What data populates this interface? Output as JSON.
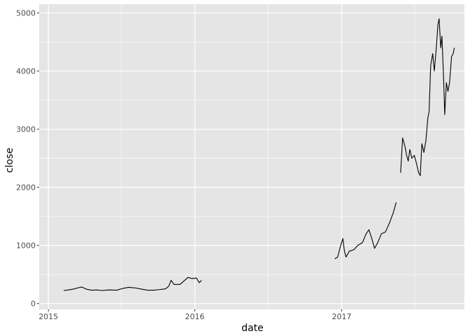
{
  "chart_data": {
    "type": "line",
    "xlabel": "date",
    "ylabel": "close",
    "x_ticks": [
      "2015",
      "2016",
      "2017"
    ],
    "y_ticks": [
      "0",
      "1000",
      "2000",
      "3000",
      "4000",
      "5000"
    ],
    "x_range": [
      "2014-12-09",
      "2017-11-03"
    ],
    "ylim": [
      -100,
      5150
    ],
    "grid": true,
    "legend": "none",
    "colors": {
      "panel": "#e5e5e5",
      "grid": "#ffffff",
      "line": "#000000"
    },
    "series": [
      {
        "values": [
          [
            "2015-02-08",
            225
          ],
          [
            "2015-02-20",
            235
          ],
          [
            "2015-03-05",
            250
          ],
          [
            "2015-03-15",
            270
          ],
          [
            "2015-03-25",
            285
          ],
          [
            "2015-04-05",
            250
          ],
          [
            "2015-04-18",
            230
          ],
          [
            "2015-05-01",
            235
          ],
          [
            "2015-05-15",
            225
          ],
          [
            "2015-06-01",
            235
          ],
          [
            "2015-06-20",
            230
          ],
          [
            "2015-07-05",
            260
          ],
          [
            "2015-07-20",
            280
          ],
          [
            "2015-08-05",
            270
          ],
          [
            "2015-08-20",
            250
          ],
          [
            "2015-09-05",
            230
          ],
          [
            "2015-09-20",
            230
          ],
          [
            "2015-10-05",
            240
          ],
          [
            "2015-10-20",
            255
          ],
          [
            "2015-10-28",
            300
          ],
          [
            "2015-11-03",
            400
          ],
          [
            "2015-11-10",
            330
          ],
          [
            "2015-11-25",
            330
          ],
          [
            "2015-12-05",
            390
          ],
          [
            "2015-12-15",
            450
          ],
          [
            "2015-12-25",
            430
          ],
          [
            "2016-01-05",
            440
          ],
          [
            "2016-01-12",
            360
          ],
          [
            "2016-01-18",
            400
          ]
        ]
      },
      {
        "values": [
          [
            "2016-12-15",
            770
          ],
          [
            "2016-12-22",
            800
          ],
          [
            "2016-12-28",
            960
          ],
          [
            "2017-01-04",
            1120
          ],
          [
            "2017-01-08",
            900
          ],
          [
            "2017-01-12",
            800
          ],
          [
            "2017-01-20",
            900
          ],
          [
            "2017-02-01",
            930
          ],
          [
            "2017-02-10",
            1000
          ],
          [
            "2017-02-22",
            1050
          ],
          [
            "2017-03-03",
            1200
          ],
          [
            "2017-03-10",
            1270
          ],
          [
            "2017-03-18",
            1100
          ],
          [
            "2017-03-24",
            950
          ],
          [
            "2017-04-01",
            1050
          ],
          [
            "2017-04-10",
            1200
          ],
          [
            "2017-04-20",
            1230
          ],
          [
            "2017-05-01",
            1400
          ],
          [
            "2017-05-10",
            1570
          ],
          [
            "2017-05-17",
            1740
          ]
        ]
      },
      {
        "values": [
          [
            "2017-05-28",
            2250
          ],
          [
            "2017-06-02",
            2850
          ],
          [
            "2017-06-08",
            2700
          ],
          [
            "2017-06-12",
            2550
          ],
          [
            "2017-06-16",
            2450
          ],
          [
            "2017-06-20",
            2650
          ],
          [
            "2017-06-25",
            2500
          ],
          [
            "2017-07-01",
            2550
          ],
          [
            "2017-07-07",
            2400
          ],
          [
            "2017-07-12",
            2250
          ],
          [
            "2017-07-16",
            2200
          ],
          [
            "2017-07-20",
            2750
          ],
          [
            "2017-07-25",
            2600
          ],
          [
            "2017-07-30",
            2800
          ],
          [
            "2017-08-04",
            3200
          ],
          [
            "2017-08-07",
            3300
          ],
          [
            "2017-08-11",
            4100
          ],
          [
            "2017-08-16",
            4300
          ],
          [
            "2017-08-20",
            4000
          ],
          [
            "2017-08-25",
            4400
          ],
          [
            "2017-08-29",
            4800
          ],
          [
            "2017-09-01",
            4900
          ],
          [
            "2017-09-05",
            4400
          ],
          [
            "2017-09-08",
            4600
          ],
          [
            "2017-09-12",
            3900
          ],
          [
            "2017-09-15",
            3250
          ],
          [
            "2017-09-19",
            3800
          ],
          [
            "2017-09-23",
            3650
          ],
          [
            "2017-09-27",
            3800
          ],
          [
            "2017-10-02",
            4250
          ],
          [
            "2017-10-06",
            4300
          ],
          [
            "2017-10-09",
            4400
          ]
        ]
      }
    ]
  }
}
